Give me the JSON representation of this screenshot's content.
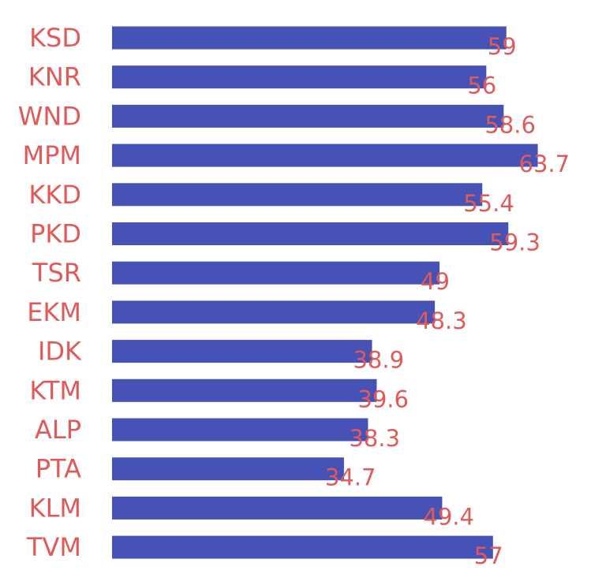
{
  "chart_data": {
    "type": "bar",
    "orientation": "horizontal",
    "categories": [
      "KSD",
      "KNR",
      "WND",
      "MPM",
      "KKD",
      "PKD",
      "TSR",
      "EKM",
      "IDK",
      "KTM",
      "ALP",
      "PTA",
      "KLM",
      "TVM"
    ],
    "value_labels": [
      "59",
      "56",
      "58.6",
      "63.7",
      "55.4",
      "59.3",
      "49",
      "48.3",
      "38.9",
      "39.6",
      "38.3",
      "34.7",
      "49.4",
      "57"
    ],
    "series": [
      {
        "values": [
          59,
          56,
          58.6,
          63.7,
          55.4,
          59.3,
          49,
          48.3,
          38.9,
          39.6,
          38.3,
          34.7,
          49.4,
          57
        ]
      }
    ],
    "title": "",
    "xlabel": "",
    "ylabel": "",
    "grid": false,
    "legend": "none",
    "colors": {
      "bar": "#4652b6",
      "text": "#e05a5a"
    }
  }
}
